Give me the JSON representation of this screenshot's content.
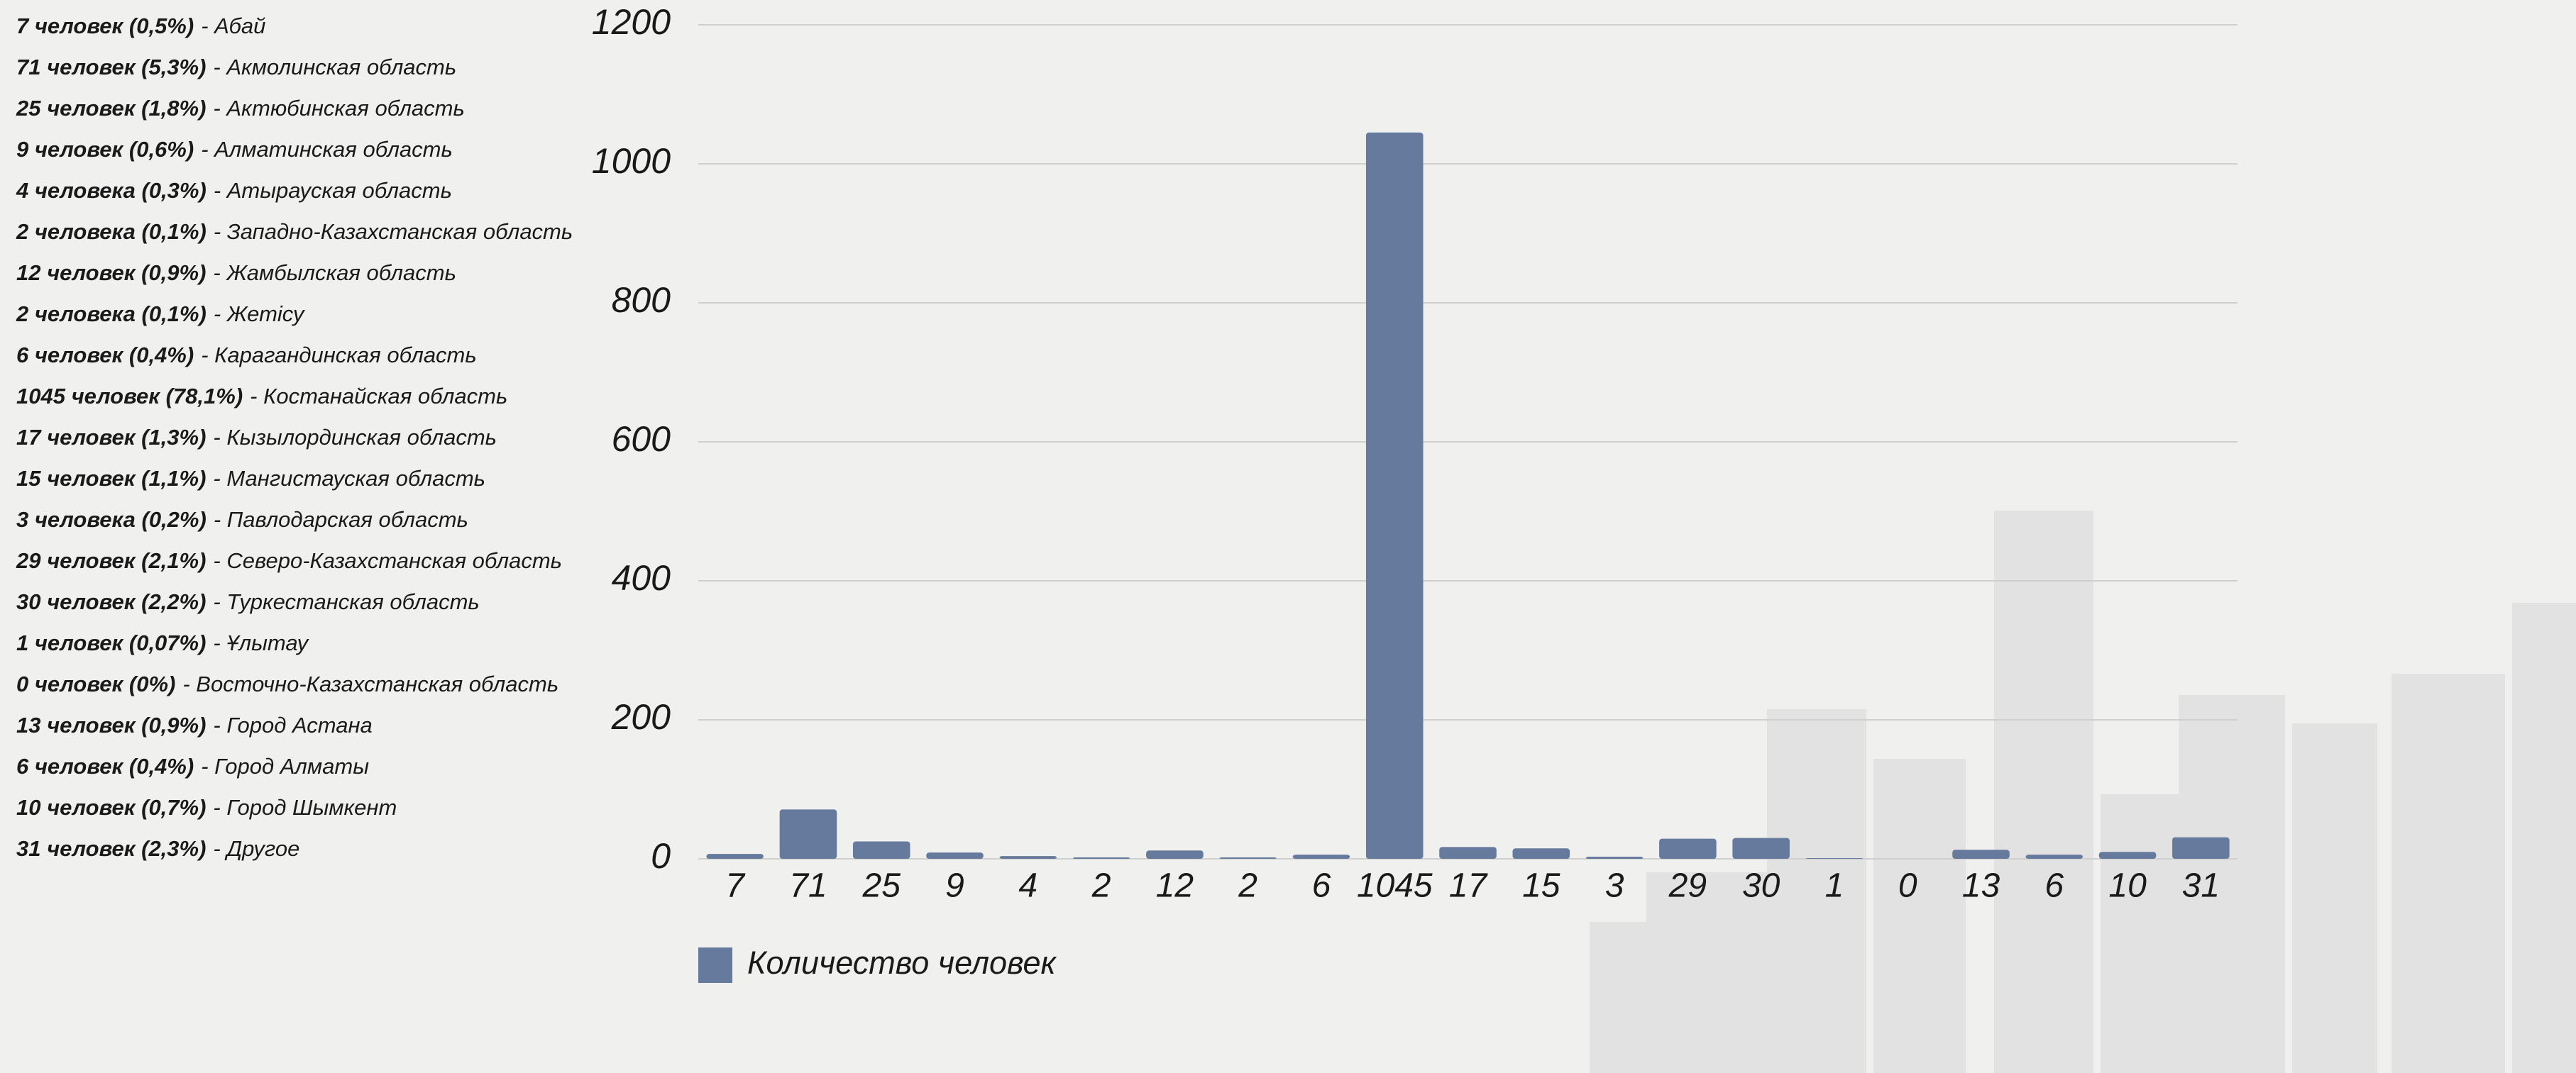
{
  "list": [
    {
      "count": "7 человек (0,5%)",
      "name": "- Абай"
    },
    {
      "count": "71 человек (5,3%)",
      "name": "- Акмолинская область"
    },
    {
      "count": "25 человек (1,8%)",
      "name": "- Актюбинская область"
    },
    {
      "count": "9 человек (0,6%)",
      "name": "- Алматинская область"
    },
    {
      "count": "4 человека (0,3%)",
      "name": "- Атырауская область"
    },
    {
      "count": "2 человека (0,1%)",
      "name": "- Западно-Казахстанская область"
    },
    {
      "count": "12 человек (0,9%)",
      "name": "- Жамбылская область"
    },
    {
      "count": "2 человека (0,1%)",
      "name": "- Жетісу"
    },
    {
      "count": "6 человек (0,4%)",
      "name": "- Карагандинская область"
    },
    {
      "count": "1045 человек (78,1%)",
      "name": "- Костанайская область"
    },
    {
      "count": "17 человек (1,3%)",
      "name": "- Кызылординская область"
    },
    {
      "count": "15 человек (1,1%)",
      "name": "- Мангистауская область"
    },
    {
      "count": "3 человека (0,2%)",
      "name": "- Павлодарская область"
    },
    {
      "count": "29 человек (2,1%)",
      "name": "- Северо-Казахстанская область"
    },
    {
      "count": "30 человек (2,2%)",
      "name": "- Туркестанская область"
    },
    {
      "count": "1 человек (0,07%)",
      "name": "- Ұлытау"
    },
    {
      "count": "0 человек (0%)",
      "name": "- Восточно-Казахстанская область"
    },
    {
      "count": "13 человек (0,9%)",
      "name": "- Город Астана"
    },
    {
      "count": "6 человек (0,4%)",
      "name": "- Город Алматы"
    },
    {
      "count": "10 человек (0,7%)",
      "name": "- Город Шымкент"
    },
    {
      "count": "31 человек (2,3%)",
      "name": "- Другое"
    }
  ],
  "chart_data": {
    "type": "bar",
    "series": [
      {
        "name": "Количество человек",
        "color": "#657a9c",
        "values": [
          7,
          71,
          25,
          9,
          4,
          2,
          12,
          2,
          6,
          1045,
          17,
          15,
          3,
          29,
          30,
          1,
          0,
          13,
          6,
          10,
          31
        ]
      }
    ],
    "ylim": [
      0,
      1200
    ],
    "yticks": [
      0,
      200,
      400,
      600,
      800,
      1000,
      1200
    ],
    "grid": true
  }
}
